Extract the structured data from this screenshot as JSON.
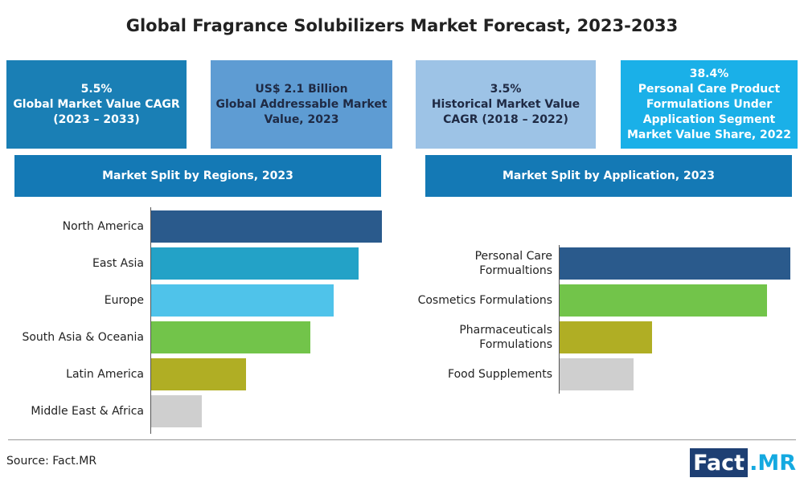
{
  "title": "Global Fragrance Solubilizers Market Forecast, 2023-2033",
  "kpis": [
    {
      "lines": [
        "5.5%",
        "Global Market Value CAGR",
        "(2023 – 2033)"
      ],
      "color": "#1a7fb5",
      "text_color": "#ffffff"
    },
    {
      "lines": [
        "US$ 2.1 Billion",
        "Global Addressable Market",
        "Value, 2023"
      ],
      "color": "#5e9cd3",
      "text_color": "#1f2a44"
    },
    {
      "lines": [
        "3.5%",
        "Historical Market Value",
        "CAGR (2018 – 2022)"
      ],
      "color": "#9dc3e6",
      "text_color": "#1f2a44"
    },
    {
      "lines": [
        "38.4%",
        "Personal Care Product",
        "Formulations Under",
        "Application Segment",
        "Market Value Share, 2022"
      ],
      "color": "#1ab0e8",
      "text_color": "#ffffff"
    }
  ],
  "chart_data": [
    {
      "type": "hbar",
      "title": "Market Split by Regions, 2023",
      "categories": [
        "North America",
        "East Asia",
        "Europe",
        "South Asia & Oceania",
        "Latin America",
        "Middle East & Africa"
      ],
      "values": [
        100,
        90,
        79,
        69,
        41,
        22
      ],
      "colors": [
        "#2a5a8c",
        "#23a2c7",
        "#4fc3ea",
        "#72c44a",
        "#b0ae24",
        "#cfcfcf"
      ],
      "xlim": [
        0,
        100
      ]
    },
    {
      "type": "hbar",
      "title": "Market Split by Application, 2023",
      "categories": [
        "Personal Care Formualtions",
        "Cosmetics Formulations",
        "Pharmaceuticals Formulations",
        "Food Supplements"
      ],
      "values": [
        100,
        90,
        40,
        32
      ],
      "colors": [
        "#2a5a8c",
        "#72c44a",
        "#b0ae24",
        "#cfcfcf"
      ],
      "xlim": [
        0,
        100
      ]
    }
  ],
  "source": "Source: Fact.MR",
  "logo": [
    "Fact",
    ".MR"
  ]
}
